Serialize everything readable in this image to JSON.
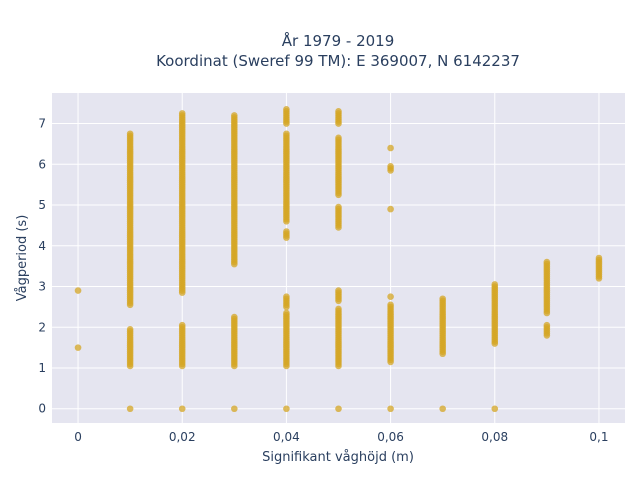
{
  "chart_data": {
    "type": "scatter",
    "title_line1": "År 1979 - 2019",
    "title_line2": "Koordinat (Sweref 99 TM): E 369007, N 6142237",
    "xlabel": "Signifikant våghöjd (m)",
    "ylabel": "Vågperiod (s)",
    "xlim": [
      -0.005,
      0.105
    ],
    "ylim": [
      -0.35,
      7.75
    ],
    "x_ticks": [
      0,
      0.02,
      0.04,
      0.06,
      0.08,
      0.1
    ],
    "x_tick_labels": [
      "0",
      "0,02",
      "0,04",
      "0,06",
      "0,08",
      "0,1"
    ],
    "y_ticks": [
      0,
      1,
      2,
      3,
      4,
      5,
      6,
      7
    ],
    "y_tick_labels": [
      "0",
      "1",
      "2",
      "3",
      "4",
      "5",
      "6",
      "7"
    ],
    "grid": true,
    "colors": {
      "marker": "#d4a524",
      "plot_bg": "#e5e5f0",
      "grid": "#ffffff",
      "text": "#2a3f5f"
    },
    "series": [
      {
        "marker_opacity": 0.75,
        "segments": [
          {
            "x": 0.0,
            "y_min": 1.5,
            "y_max": 1.5
          },
          {
            "x": 0.0,
            "y_min": 2.9,
            "y_max": 2.9
          },
          {
            "x": 0.01,
            "y_min": 0.0,
            "y_max": 0.0
          },
          {
            "x": 0.01,
            "y_min": 1.05,
            "y_max": 1.95
          },
          {
            "x": 0.01,
            "y_min": 2.55,
            "y_max": 6.75
          },
          {
            "x": 0.02,
            "y_min": 0.0,
            "y_max": 0.0
          },
          {
            "x": 0.02,
            "y_min": 1.05,
            "y_max": 2.05
          },
          {
            "x": 0.02,
            "y_min": 2.85,
            "y_max": 7.25
          },
          {
            "x": 0.03,
            "y_min": 0.0,
            "y_max": 0.0
          },
          {
            "x": 0.03,
            "y_min": 1.05,
            "y_max": 2.25
          },
          {
            "x": 0.03,
            "y_min": 3.55,
            "y_max": 7.2
          },
          {
            "x": 0.04,
            "y_min": 0.0,
            "y_max": 0.0
          },
          {
            "x": 0.04,
            "y_min": 1.05,
            "y_max": 2.35
          },
          {
            "x": 0.04,
            "y_min": 2.5,
            "y_max": 2.75
          },
          {
            "x": 0.04,
            "y_min": 4.2,
            "y_max": 4.35
          },
          {
            "x": 0.04,
            "y_min": 4.6,
            "y_max": 6.75
          },
          {
            "x": 0.04,
            "y_min": 7.0,
            "y_max": 7.35
          },
          {
            "x": 0.05,
            "y_min": 0.0,
            "y_max": 0.0
          },
          {
            "x": 0.05,
            "y_min": 1.05,
            "y_max": 2.45
          },
          {
            "x": 0.05,
            "y_min": 2.65,
            "y_max": 2.9
          },
          {
            "x": 0.05,
            "y_min": 4.45,
            "y_max": 4.95
          },
          {
            "x": 0.05,
            "y_min": 5.25,
            "y_max": 6.65
          },
          {
            "x": 0.05,
            "y_min": 7.0,
            "y_max": 7.3
          },
          {
            "x": 0.06,
            "y_min": 0.0,
            "y_max": 0.0
          },
          {
            "x": 0.06,
            "y_min": 1.15,
            "y_max": 2.55
          },
          {
            "x": 0.06,
            "y_min": 2.75,
            "y_max": 2.75
          },
          {
            "x": 0.06,
            "y_min": 4.9,
            "y_max": 4.9
          },
          {
            "x": 0.06,
            "y_min": 5.85,
            "y_max": 5.95
          },
          {
            "x": 0.06,
            "y_min": 6.4,
            "y_max": 6.4
          },
          {
            "x": 0.07,
            "y_min": 0.0,
            "y_max": 0.0
          },
          {
            "x": 0.07,
            "y_min": 1.35,
            "y_max": 2.7
          },
          {
            "x": 0.08,
            "y_min": 0.0,
            "y_max": 0.0
          },
          {
            "x": 0.08,
            "y_min": 1.6,
            "y_max": 3.05
          },
          {
            "x": 0.09,
            "y_min": 1.8,
            "y_max": 2.05
          },
          {
            "x": 0.09,
            "y_min": 2.35,
            "y_max": 3.6
          },
          {
            "x": 0.1,
            "y_min": 3.2,
            "y_max": 3.7
          }
        ]
      }
    ]
  }
}
